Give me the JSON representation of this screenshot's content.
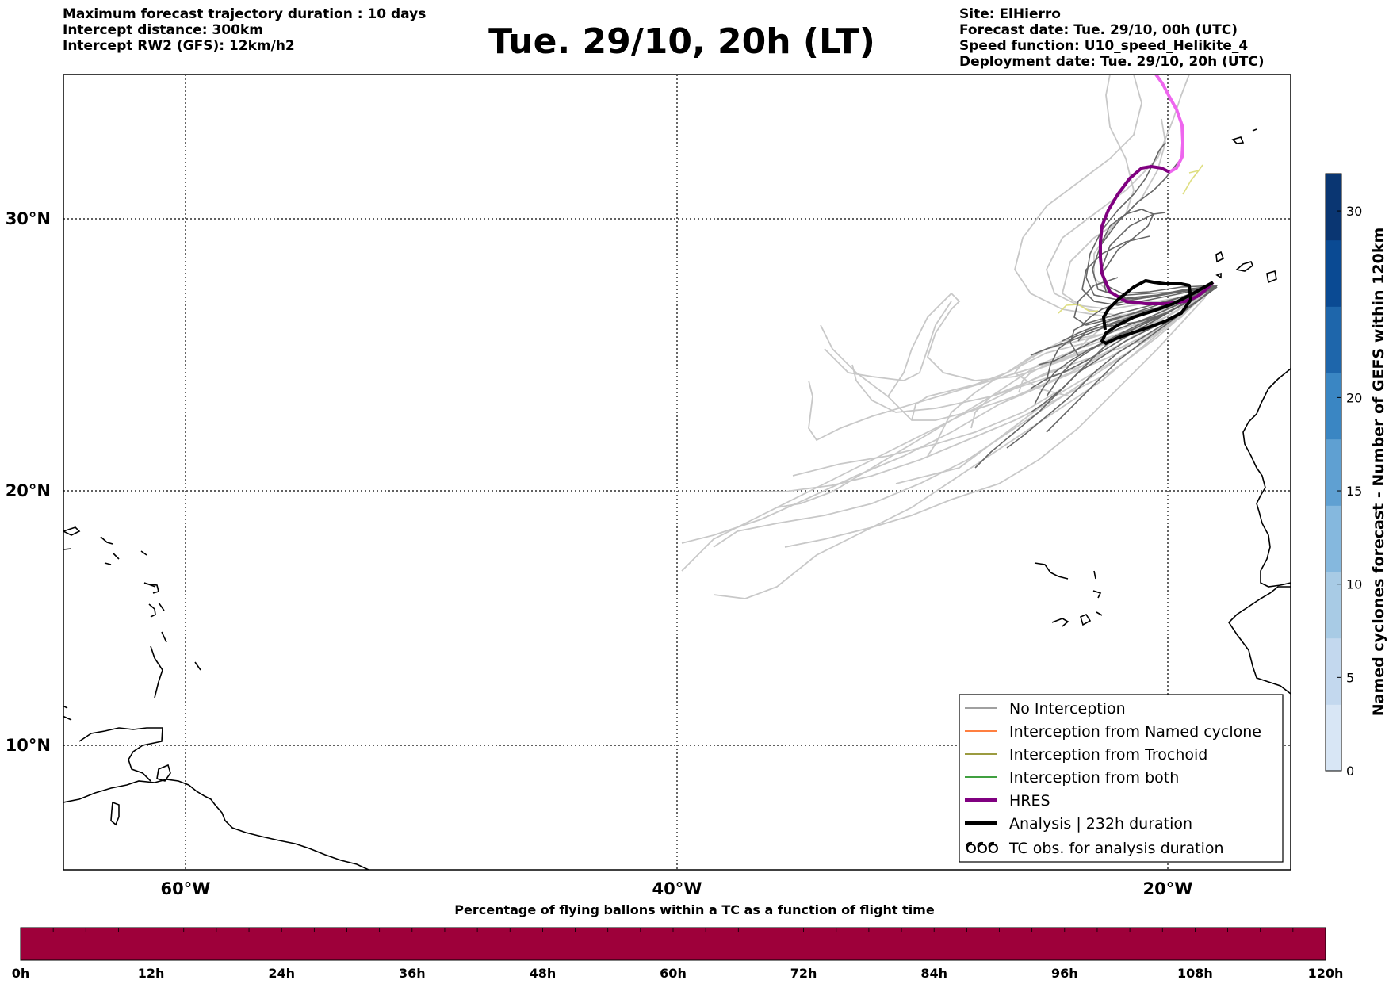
{
  "header": {
    "left_lines": [
      "Maximum forecast trajectory duration : 10 days",
      "Intercept distance: 300km",
      "Intercept RW2 (GFS):  12km/h2"
    ],
    "title": "Tue. 29/10, 20h (LT)",
    "right_lines": [
      "Site: ElHierro",
      "Forecast date: Tue. 29/10, 00h (UTC)",
      "Speed function: U10_speed_Helikite_4",
      "Deployment date: Tue. 29/10, 20h (UTC)"
    ]
  },
  "map": {
    "lat_labels": [
      "30°N",
      "20°N",
      "10°N"
    ],
    "lon_labels": [
      "60°W",
      "40°W",
      "20°W"
    ],
    "lat_gridlines": [
      30,
      20,
      10
    ],
    "lon_gridlines": [
      -60,
      -40,
      -20
    ],
    "extent": {
      "lon_min": -65,
      "lon_max": -15,
      "lat_min": 5.4,
      "lat_max": 35.3
    },
    "colors": {
      "no_interception": "#666666",
      "gefs_light": "#c8c8c8",
      "hres": "#800080",
      "hres_light": "#ee66ee",
      "analysis": "#000000",
      "trochoid_hint": "#dede80"
    }
  },
  "legend": {
    "items": [
      {
        "label": "No Interception",
        "color": "#808080",
        "style": "thin"
      },
      {
        "label": "Interception from Named cyclone",
        "color": "#ff5500",
        "style": "thin"
      },
      {
        "label": "Interception from Trochoid",
        "color": "#7a7a00",
        "style": "thin"
      },
      {
        "label": "Interception from both",
        "color": "#008000",
        "style": "thin"
      },
      {
        "label": "HRES",
        "color": "#800080",
        "style": "thick"
      },
      {
        "label": "Analysis | 232h duration",
        "color": "#000000",
        "style": "thick"
      },
      {
        "label": "TC obs. for analysis duration",
        "color": "#000000",
        "style": "symbols"
      }
    ]
  },
  "colorbar": {
    "label": "Named cyclones forecast - Number of GEFS within 120km",
    "ticks": [
      "0",
      "5",
      "10",
      "15",
      "20",
      "30"
    ],
    "tick_values": [
      0,
      5,
      10,
      15,
      20,
      30
    ],
    "range": [
      0,
      32
    ],
    "colors": [
      "#d8e6f5",
      "#c3d8ee",
      "#a8cbe5",
      "#85b8de",
      "#5fa0d2",
      "#3a86c3",
      "#1e66ab",
      "#0a4a93",
      "#0a3672"
    ]
  },
  "strip": {
    "title": "Percentage of flying ballons within a TC as a function of flight time",
    "ticks": [
      "0h",
      "12h",
      "24h",
      "36h",
      "48h",
      "60h",
      "72h",
      "84h",
      "96h",
      "108h",
      "120h"
    ],
    "hours": [
      0,
      12,
      24,
      36,
      48,
      60,
      72,
      84,
      96,
      108,
      120
    ],
    "fill_color": "#9e003a",
    "percentage_per_hour": 0
  }
}
